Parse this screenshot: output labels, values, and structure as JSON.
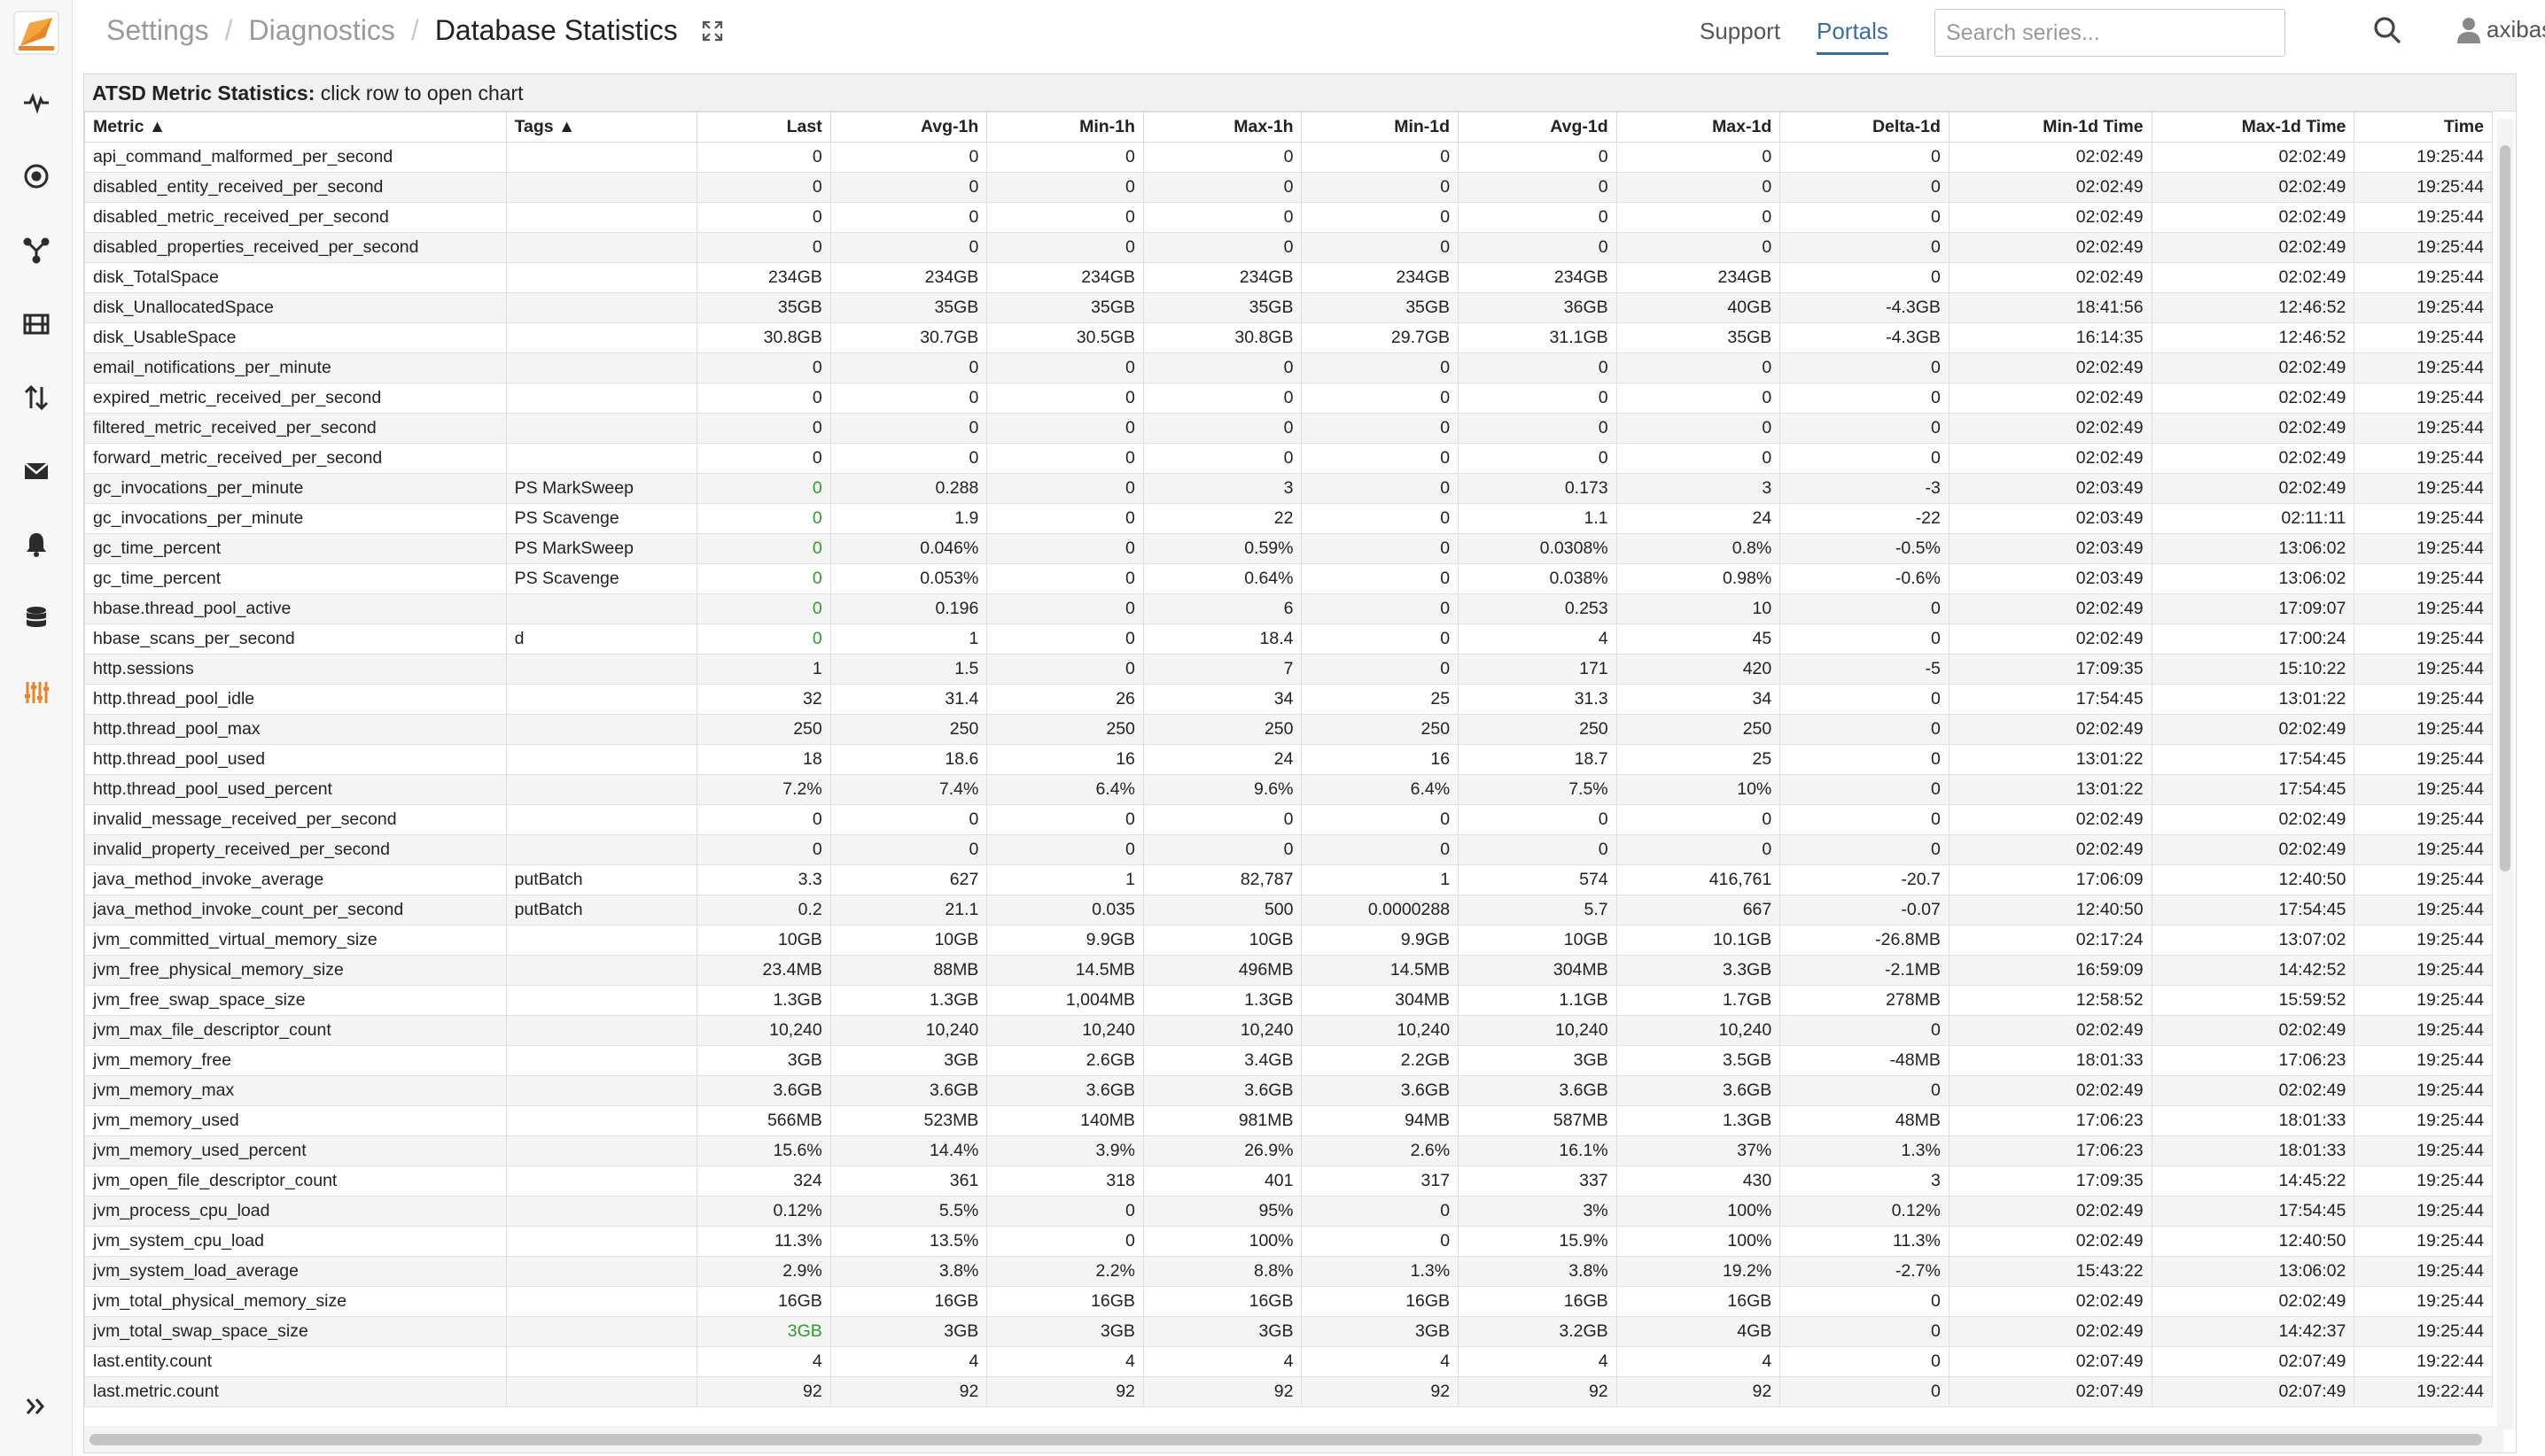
{
  "breadcrumb": {
    "item1": "Settings",
    "item2": "Diagnostics",
    "current": "Database Statistics",
    "separator": "/"
  },
  "nav": {
    "support": "Support",
    "portals": "Portals"
  },
  "search": {
    "placeholder": "Search series..."
  },
  "user": {
    "name": "axibase"
  },
  "panel": {
    "title_bold": "ATSD Metric Statistics:",
    "title_rest": " click row to open chart"
  },
  "table": {
    "columns": [
      "Metric ▲",
      "Tags ▲",
      "Last",
      "Avg-1h",
      "Min-1h",
      "Max-1h",
      "Min-1d",
      "Avg-1d",
      "Max-1d",
      "Delta-1d",
      "Min-1d Time",
      "Max-1d Time",
      "Time"
    ],
    "rows": [
      [
        "api_command_malformed_per_second",
        "",
        "0",
        "0",
        "0",
        "0",
        "0",
        "0",
        "0",
        "0",
        "02:02:49",
        "02:02:49",
        "19:25:44"
      ],
      [
        "disabled_entity_received_per_second",
        "",
        "0",
        "0",
        "0",
        "0",
        "0",
        "0",
        "0",
        "0",
        "02:02:49",
        "02:02:49",
        "19:25:44"
      ],
      [
        "disabled_metric_received_per_second",
        "",
        "0",
        "0",
        "0",
        "0",
        "0",
        "0",
        "0",
        "0",
        "02:02:49",
        "02:02:49",
        "19:25:44"
      ],
      [
        "disabled_properties_received_per_second",
        "",
        "0",
        "0",
        "0",
        "0",
        "0",
        "0",
        "0",
        "0",
        "02:02:49",
        "02:02:49",
        "19:25:44"
      ],
      [
        "disk_TotalSpace",
        "",
        "234GB",
        "234GB",
        "234GB",
        "234GB",
        "234GB",
        "234GB",
        "234GB",
        "0",
        "02:02:49",
        "02:02:49",
        "19:25:44"
      ],
      [
        "disk_UnallocatedSpace",
        "",
        "35GB",
        "35GB",
        "35GB",
        "35GB",
        "35GB",
        "36GB",
        "40GB",
        "-4.3GB",
        "18:41:56",
        "12:46:52",
        "19:25:44"
      ],
      [
        "disk_UsableSpace",
        "",
        "30.8GB",
        "30.7GB",
        "30.5GB",
        "30.8GB",
        "29.7GB",
        "31.1GB",
        "35GB",
        "-4.3GB",
        "16:14:35",
        "12:46:52",
        "19:25:44"
      ],
      [
        "email_notifications_per_minute",
        "",
        "0",
        "0",
        "0",
        "0",
        "0",
        "0",
        "0",
        "0",
        "02:02:49",
        "02:02:49",
        "19:25:44"
      ],
      [
        "expired_metric_received_per_second",
        "",
        "0",
        "0",
        "0",
        "0",
        "0",
        "0",
        "0",
        "0",
        "02:02:49",
        "02:02:49",
        "19:25:44"
      ],
      [
        "filtered_metric_received_per_second",
        "",
        "0",
        "0",
        "0",
        "0",
        "0",
        "0",
        "0",
        "0",
        "02:02:49",
        "02:02:49",
        "19:25:44"
      ],
      [
        "forward_metric_received_per_second",
        "",
        "0",
        "0",
        "0",
        "0",
        "0",
        "0",
        "0",
        "0",
        "02:02:49",
        "02:02:49",
        "19:25:44"
      ],
      [
        "gc_invocations_per_minute",
        "PS MarkSweep",
        "0",
        "0.288",
        "0",
        "3",
        "0",
        "0.173",
        "3",
        "-3",
        "02:03:49",
        "02:02:49",
        "19:25:44"
      ],
      [
        "gc_invocations_per_minute",
        "PS Scavenge",
        "0",
        "1.9",
        "0",
        "22",
        "0",
        "1.1",
        "24",
        "-22",
        "02:03:49",
        "02:11:11",
        "19:25:44"
      ],
      [
        "gc_time_percent",
        "PS MarkSweep",
        "0",
        "0.046%",
        "0",
        "0.59%",
        "0",
        "0.0308%",
        "0.8%",
        "-0.5%",
        "02:03:49",
        "13:06:02",
        "19:25:44"
      ],
      [
        "gc_time_percent",
        "PS Scavenge",
        "0",
        "0.053%",
        "0",
        "0.64%",
        "0",
        "0.038%",
        "0.98%",
        "-0.6%",
        "02:03:49",
        "13:06:02",
        "19:25:44"
      ],
      [
        "hbase.thread_pool_active",
        "",
        "0",
        "0.196",
        "0",
        "6",
        "0",
        "0.253",
        "10",
        "0",
        "02:02:49",
        "17:09:07",
        "19:25:44"
      ],
      [
        "hbase_scans_per_second",
        "d",
        "0",
        "1",
        "0",
        "18.4",
        "0",
        "4",
        "45",
        "0",
        "02:02:49",
        "17:00:24",
        "19:25:44"
      ],
      [
        "http.sessions",
        "",
        "1",
        "1.5",
        "0",
        "7",
        "0",
        "171",
        "420",
        "-5",
        "17:09:35",
        "15:10:22",
        "19:25:44"
      ],
      [
        "http.thread_pool_idle",
        "",
        "32",
        "31.4",
        "26",
        "34",
        "25",
        "31.3",
        "34",
        "0",
        "17:54:45",
        "13:01:22",
        "19:25:44"
      ],
      [
        "http.thread_pool_max",
        "",
        "250",
        "250",
        "250",
        "250",
        "250",
        "250",
        "250",
        "0",
        "02:02:49",
        "02:02:49",
        "19:25:44"
      ],
      [
        "http.thread_pool_used",
        "",
        "18",
        "18.6",
        "16",
        "24",
        "16",
        "18.7",
        "25",
        "0",
        "13:01:22",
        "17:54:45",
        "19:25:44"
      ],
      [
        "http.thread_pool_used_percent",
        "",
        "7.2%",
        "7.4%",
        "6.4%",
        "9.6%",
        "6.4%",
        "7.5%",
        "10%",
        "0",
        "13:01:22",
        "17:54:45",
        "19:25:44"
      ],
      [
        "invalid_message_received_per_second",
        "",
        "0",
        "0",
        "0",
        "0",
        "0",
        "0",
        "0",
        "0",
        "02:02:49",
        "02:02:49",
        "19:25:44"
      ],
      [
        "invalid_property_received_per_second",
        "",
        "0",
        "0",
        "0",
        "0",
        "0",
        "0",
        "0",
        "0",
        "02:02:49",
        "02:02:49",
        "19:25:44"
      ],
      [
        "java_method_invoke_average",
        "putBatch",
        "3.3",
        "627",
        "1",
        "82,787",
        "1",
        "574",
        "416,761",
        "-20.7",
        "17:06:09",
        "12:40:50",
        "19:25:44"
      ],
      [
        "java_method_invoke_count_per_second",
        "putBatch",
        "0.2",
        "21.1",
        "0.035",
        "500",
        "0.0000288",
        "5.7",
        "667",
        "-0.07",
        "12:40:50",
        "17:54:45",
        "19:25:44"
      ],
      [
        "jvm_committed_virtual_memory_size",
        "",
        "10GB",
        "10GB",
        "9.9GB",
        "10GB",
        "9.9GB",
        "10GB",
        "10.1GB",
        "-26.8MB",
        "02:17:24",
        "13:07:02",
        "19:25:44"
      ],
      [
        "jvm_free_physical_memory_size",
        "",
        "23.4MB",
        "88MB",
        "14.5MB",
        "496MB",
        "14.5MB",
        "304MB",
        "3.3GB",
        "-2.1MB",
        "16:59:09",
        "14:42:52",
        "19:25:44"
      ],
      [
        "jvm_free_swap_space_size",
        "",
        "1.3GB",
        "1.3GB",
        "1,004MB",
        "1.3GB",
        "304MB",
        "1.1GB",
        "1.7GB",
        "278MB",
        "12:58:52",
        "15:59:52",
        "19:25:44"
      ],
      [
        "jvm_max_file_descriptor_count",
        "",
        "10,240",
        "10,240",
        "10,240",
        "10,240",
        "10,240",
        "10,240",
        "10,240",
        "0",
        "02:02:49",
        "02:02:49",
        "19:25:44"
      ],
      [
        "jvm_memory_free",
        "",
        "3GB",
        "3GB",
        "2.6GB",
        "3.4GB",
        "2.2GB",
        "3GB",
        "3.5GB",
        "-48MB",
        "18:01:33",
        "17:06:23",
        "19:25:44"
      ],
      [
        "jvm_memory_max",
        "",
        "3.6GB",
        "3.6GB",
        "3.6GB",
        "3.6GB",
        "3.6GB",
        "3.6GB",
        "3.6GB",
        "0",
        "02:02:49",
        "02:02:49",
        "19:25:44"
      ],
      [
        "jvm_memory_used",
        "",
        "566MB",
        "523MB",
        "140MB",
        "981MB",
        "94MB",
        "587MB",
        "1.3GB",
        "48MB",
        "17:06:23",
        "18:01:33",
        "19:25:44"
      ],
      [
        "jvm_memory_used_percent",
        "",
        "15.6%",
        "14.4%",
        "3.9%",
        "26.9%",
        "2.6%",
        "16.1%",
        "37%",
        "1.3%",
        "17:06:23",
        "18:01:33",
        "19:25:44"
      ],
      [
        "jvm_open_file_descriptor_count",
        "",
        "324",
        "361",
        "318",
        "401",
        "317",
        "337",
        "430",
        "3",
        "17:09:35",
        "14:45:22",
        "19:25:44"
      ],
      [
        "jvm_process_cpu_load",
        "",
        "0.12%",
        "5.5%",
        "0",
        "95%",
        "0",
        "3%",
        "100%",
        "0.12%",
        "02:02:49",
        "17:54:45",
        "19:25:44"
      ],
      [
        "jvm_system_cpu_load",
        "",
        "11.3%",
        "13.5%",
        "0",
        "100%",
        "0",
        "15.9%",
        "100%",
        "11.3%",
        "02:02:49",
        "12:40:50",
        "19:25:44"
      ],
      [
        "jvm_system_load_average",
        "",
        "2.9%",
        "3.8%",
        "2.2%",
        "8.8%",
        "1.3%",
        "3.8%",
        "19.2%",
        "-2.7%",
        "15:43:22",
        "13:06:02",
        "19:25:44"
      ],
      [
        "jvm_total_physical_memory_size",
        "",
        "16GB",
        "16GB",
        "16GB",
        "16GB",
        "16GB",
        "16GB",
        "16GB",
        "0",
        "02:02:49",
        "02:02:49",
        "19:25:44"
      ],
      [
        "jvm_total_swap_space_size",
        "",
        "3GB",
        "3GB",
        "3GB",
        "3GB",
        "3GB",
        "3.2GB",
        "4GB",
        "0",
        "02:02:49",
        "14:42:37",
        "19:25:44"
      ],
      [
        "last.entity.count",
        "",
        "4",
        "4",
        "4",
        "4",
        "4",
        "4",
        "4",
        "0",
        "02:07:49",
        "02:07:49",
        "19:22:44"
      ],
      [
        "last.metric.count",
        "",
        "92",
        "92",
        "92",
        "92",
        "92",
        "92",
        "92",
        "0",
        "02:07:49",
        "02:07:49",
        "19:22:44"
      ]
    ],
    "green_last_rows": [
      11,
      12,
      13,
      14,
      15,
      16,
      39
    ]
  },
  "colors": {
    "accent": "#e8852b",
    "link_active": "#3b6e9e",
    "green_value": "#2e9a2e"
  },
  "sidebar_icons": [
    "logo-icon",
    "activity-icon",
    "target-icon",
    "fork-icon",
    "film-icon",
    "transfer-icon",
    "mail-icon",
    "bell-icon",
    "database-icon",
    "sliders-icon",
    "double-chevron-right-icon"
  ]
}
